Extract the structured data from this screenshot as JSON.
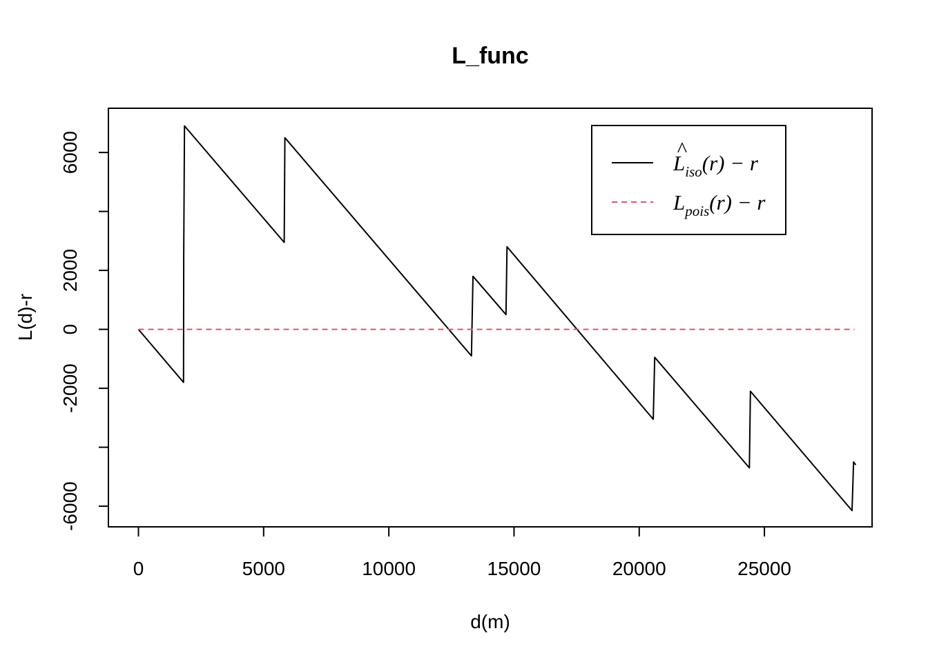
{
  "chart_data": {
    "type": "line",
    "title": "L_func",
    "xlabel": "d(m)",
    "ylabel": "L(d)-r",
    "xlim": [
      -1200,
      29300
    ],
    "ylim": [
      -6700,
      7500
    ],
    "xticks": [
      0,
      5000,
      10000,
      15000,
      20000,
      25000
    ],
    "xtick_labels": [
      "0",
      "5000",
      "10000",
      "15000",
      "20000",
      "25000"
    ],
    "yticks": [
      -6000,
      -4000,
      -2000,
      0,
      2000,
      4000,
      6000
    ],
    "ytick_labels": [
      "-6000",
      "",
      "-2000",
      "0",
      "2000",
      "",
      "6000"
    ],
    "grid": false,
    "legend_position": "top-right",
    "series": [
      {
        "name": "L̂iso(r) − r",
        "legend": {
          "main": "L",
          "hat": "^",
          "sub": "iso",
          "rest": "(r) − r"
        },
        "color": "#000000",
        "dash": "solid",
        "x": [
          0,
          1800,
          1810,
          1840,
          5820,
          5850,
          13300,
          13360,
          14680,
          14720,
          20560,
          20620,
          24400,
          24440,
          28500,
          28560,
          28650
        ],
        "y": [
          0,
          -1800,
          2600,
          6900,
          2950,
          6500,
          -900,
          1800,
          500,
          2800,
          -3050,
          -950,
          -4700,
          -2100,
          -6150,
          -4500,
          -4600
        ]
      },
      {
        "name": "Lpois(r) − r",
        "legend": {
          "main": "L",
          "hat": "",
          "sub": "pois",
          "rest": "(r) − r"
        },
        "color": "#DF536B",
        "dash": "dashed",
        "x": [
          0,
          28600
        ],
        "y": [
          0,
          0
        ]
      }
    ]
  }
}
